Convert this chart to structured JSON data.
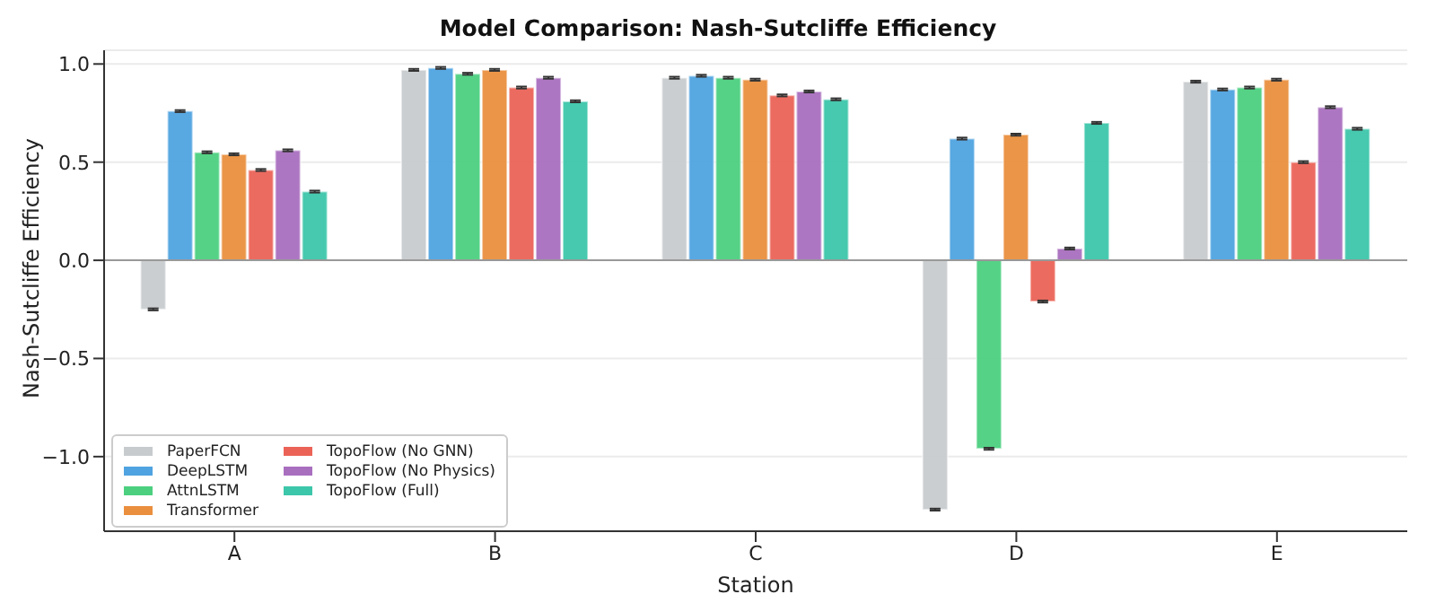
{
  "chart_data": {
    "type": "bar",
    "title": "Model Comparison: Nash-Sutcliffe Efficiency",
    "xlabel": "Station",
    "ylabel": "Nash-Sutcliffe Efficiency",
    "categories": [
      "A",
      "B",
      "C",
      "D",
      "E"
    ],
    "series": [
      {
        "name": "PaperFCN",
        "color": "#c7cbcd",
        "values": [
          -0.25,
          0.97,
          0.93,
          -1.27,
          0.91
        ],
        "errors": [
          0.005,
          0.005,
          0.005,
          0.005,
          0.005
        ]
      },
      {
        "name": "DeepLSTM",
        "color": "#4fa3e0",
        "values": [
          0.76,
          0.98,
          0.94,
          0.62,
          0.87
        ],
        "errors": [
          0.005,
          0.005,
          0.005,
          0.005,
          0.005
        ]
      },
      {
        "name": "AttnLSTM",
        "color": "#4cd07f",
        "values": [
          0.55,
          0.95,
          0.93,
          -0.96,
          0.88
        ],
        "errors": [
          0.005,
          0.005,
          0.005,
          0.005,
          0.005
        ]
      },
      {
        "name": "Transformer",
        "color": "#ea8f3e",
        "values": [
          0.54,
          0.97,
          0.92,
          0.64,
          0.92
        ],
        "errors": [
          0.005,
          0.005,
          0.005,
          0.005,
          0.005
        ]
      },
      {
        "name": "TopoFlow (No GNN)",
        "color": "#eb6357",
        "values": [
          0.46,
          0.88,
          0.84,
          -0.21,
          0.5
        ],
        "errors": [
          0.005,
          0.005,
          0.005,
          0.005,
          0.005
        ]
      },
      {
        "name": "TopoFlow (No Physics)",
        "color": "#a96fbf",
        "values": [
          0.56,
          0.93,
          0.86,
          0.06,
          0.78
        ],
        "errors": [
          0.005,
          0.005,
          0.005,
          0.005,
          0.005
        ]
      },
      {
        "name": "TopoFlow (Full)",
        "color": "#3cc6aa",
        "values": [
          0.35,
          0.81,
          0.82,
          0.7,
          0.67
        ],
        "errors": [
          0.005,
          0.005,
          0.005,
          0.005,
          0.005
        ]
      }
    ],
    "ylim": [
      -1.38,
      1.07
    ],
    "yticks": [
      {
        "value": -1,
        "label": "−1.0"
      },
      {
        "value": -0.5,
        "label": "−0.5"
      },
      {
        "value": 0,
        "label": "0.0"
      },
      {
        "value": 0.5,
        "label": "0.5"
      },
      {
        "value": 1,
        "label": "1.0"
      }
    ],
    "ref_lines": [
      {
        "axis": "y",
        "value": 0,
        "color": "#999999"
      }
    ],
    "grid": "y",
    "legend": "bottom left"
  }
}
